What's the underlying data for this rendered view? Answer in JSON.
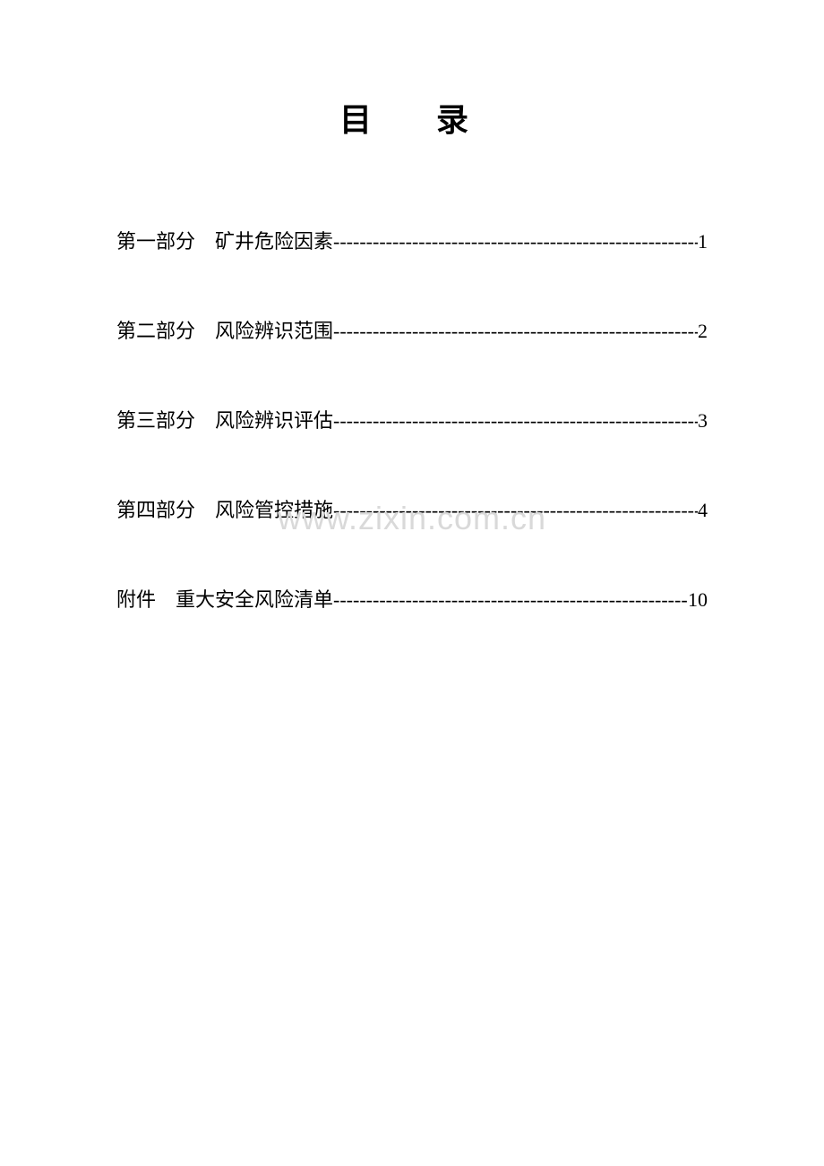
{
  "title": "目　录",
  "toc": [
    {
      "prefix": "第一部分",
      "label": "矿井危险因素",
      "page": "1"
    },
    {
      "prefix": "第二部分",
      "label": "风险辨识范围",
      "page": "2"
    },
    {
      "prefix": "第三部分",
      "label": "风险辨识评估",
      "page": "3"
    },
    {
      "prefix": "第四部分",
      "label": "风险管控措施",
      "page": "4"
    },
    {
      "prefix": "附件",
      "label": "重大安全风险清单",
      "page": "10"
    }
  ],
  "watermark": "www.zixin.com.cn",
  "leader_char": "-",
  "styles": {
    "page_bg": "#ffffff",
    "text_color": "#000000",
    "watermark_color": "#d9d9d9",
    "title_fontsize": 36,
    "entry_fontsize": 22,
    "watermark_fontsize": 36
  }
}
